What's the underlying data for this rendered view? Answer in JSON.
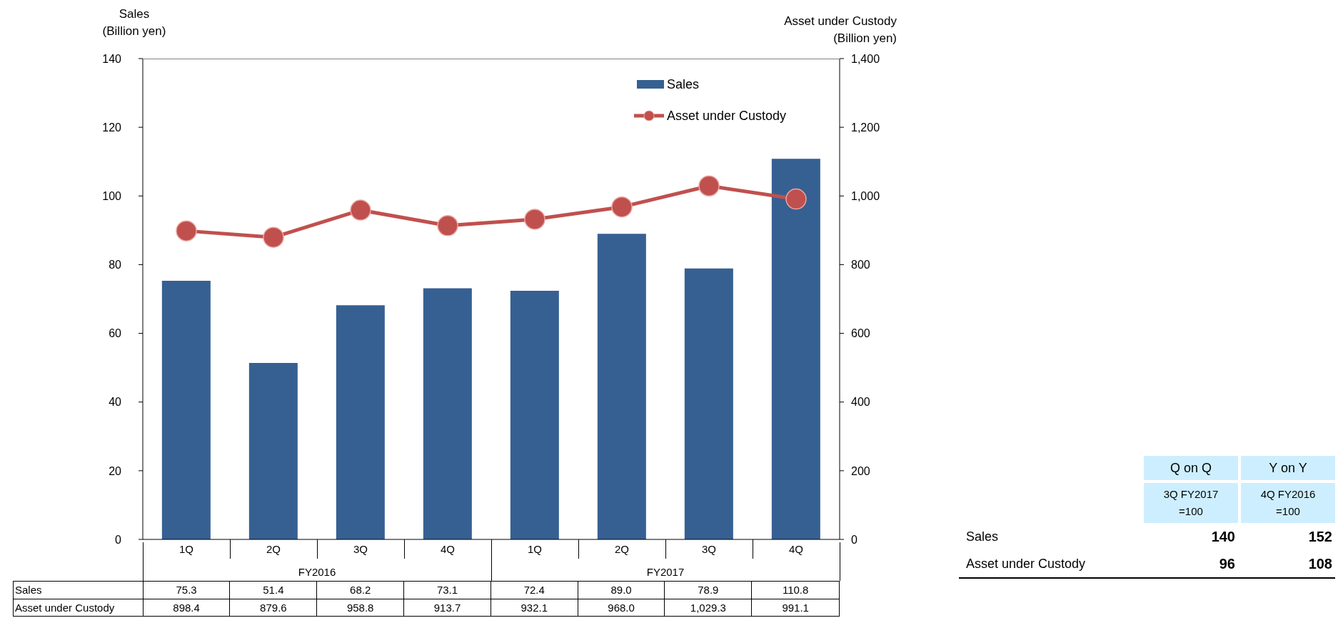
{
  "chart_data": [
    {
      "type": "bar",
      "categories": [
        "1Q",
        "2Q",
        "3Q",
        "4Q",
        "1Q",
        "2Q",
        "3Q",
        "4Q"
      ],
      "series": [
        {
          "name": "Sales",
          "type": "bar",
          "color": "#366092",
          "values": [
            75.3,
            51.4,
            68.2,
            73.1,
            72.4,
            89.0,
            78.9,
            110.8
          ],
          "value_labels": [
            "75.3",
            "51.4",
            "68.2",
            "73.1",
            "72.4",
            "89.0",
            "78.9",
            "110.8"
          ]
        },
        {
          "name": "Asset under Custody",
          "type": "line",
          "axis": "y2",
          "color": "#c0504d",
          "values": [
            898.4,
            879.6,
            958.8,
            913.7,
            932.1,
            968.0,
            1029.3,
            991.1
          ],
          "value_labels": [
            "898.4",
            "879.6",
            "958.8",
            "913.7",
            "932.1",
            "968.0",
            "1,029.3",
            "991.1"
          ]
        }
      ],
      "ylabel": "Sales\n(Billion yen)",
      "y2label": "Asset under Custody\n(Billion yen)",
      "ylim": [
        0,
        140
      ],
      "yticks": [
        0,
        20,
        40,
        60,
        80,
        100,
        120,
        140
      ],
      "y2lim": [
        0,
        1400
      ],
      "y2ticks": [
        0,
        {
          "value": 200,
          "label": "200"
        },
        {
          "value": 400,
          "label": "400"
        },
        {
          "value": 600,
          "label": "600"
        },
        {
          "value": 800,
          "label": "800"
        },
        {
          "value": 1000,
          "label": "1,000"
        },
        {
          "value": 1200,
          "label": "1,200"
        },
        {
          "value": 1400,
          "label": "1,400"
        }
      ],
      "annotations": [
        "FY2016",
        "FY2017"
      ],
      "marker": "circle",
      "legend": "top right",
      "grid": false
    },
    {
      "type": "other",
      "categories": [
        "Sales",
        "Asset under Custody"
      ],
      "series": [
        {
          "name": "Q on Q",
          "values": [
            140,
            96
          ]
        },
        {
          "name": "Y on Y",
          "values": [
            152,
            108
          ]
        }
      ],
      "annotations": [
        "3Q FY2017\n=100",
        "4Q FY2016\n=100"
      ],
      "data_labels": true
    }
  ]
}
